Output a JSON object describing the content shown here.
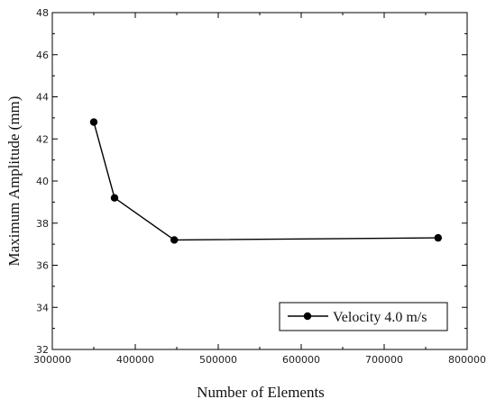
{
  "chart_data": {
    "type": "line",
    "title": "",
    "xlabel": "Number of Elements",
    "ylabel": "Maximum Amplitude (mm)",
    "xlim": [
      300000,
      800000
    ],
    "ylim": [
      32,
      48
    ],
    "xticks": [
      "300000",
      "400000",
      "500000",
      "600000",
      "700000",
      "800000"
    ],
    "yticks": [
      "32",
      "34",
      "36",
      "38",
      "40",
      "42",
      "44",
      "46",
      "48"
    ],
    "grid": false,
    "legend_position": "bottom-right",
    "series": [
      {
        "name": "Velocity 4.0 m/s",
        "color": "#000000",
        "marker": "filled-circle",
        "x": [
          350000,
          375000,
          447000,
          765000
        ],
        "y": [
          42.8,
          39.2,
          37.2,
          37.3
        ]
      }
    ]
  }
}
